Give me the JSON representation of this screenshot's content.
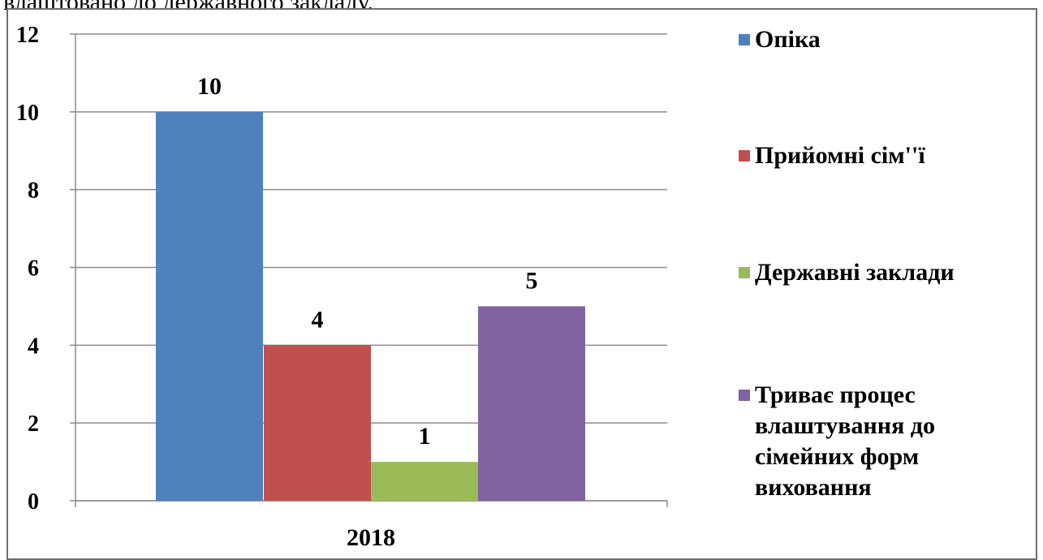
{
  "header": {
    "partial_text": "влаштовано до державного закладу."
  },
  "chart_data": {
    "type": "bar",
    "categories": [
      "2018"
    ],
    "series": [
      {
        "name": "Опіка",
        "values": [
          10
        ],
        "color": "#4F81BD"
      },
      {
        "name": "Прийомні сім''ї",
        "values": [
          4
        ],
        "color": "#C0504D"
      },
      {
        "name": "Державні заклади",
        "values": [
          1
        ],
        "color": "#9BBB59"
      },
      {
        "name": "Триває процес влаштування до сімейних форм виховання",
        "values": [
          5
        ],
        "color": "#8064A2"
      }
    ],
    "ylim": [
      0,
      12
    ],
    "yticks": [
      "0",
      "2",
      "4",
      "6",
      "8",
      "10",
      "12"
    ],
    "data_labels": [
      "10",
      "4",
      "1",
      "5"
    ],
    "grid": true,
    "legend_position": "right"
  }
}
